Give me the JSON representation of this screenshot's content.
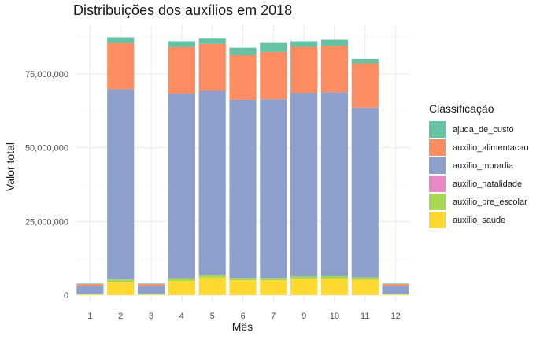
{
  "chart_data": {
    "type": "bar",
    "stacked": true,
    "title": "Distribuições dos auxílios em 2018",
    "xlabel": "Mês",
    "ylabel": "Valor total",
    "ylim": [
      0,
      92000000
    ],
    "yticks": [
      "0",
      "25,000,000",
      "50,000,000",
      "75,000,000"
    ],
    "ytick_values": [
      0,
      25000000,
      50000000,
      75000000
    ],
    "grid": true,
    "legend_title": "Classificação",
    "legend_position": "right",
    "categories": [
      "1",
      "2",
      "3",
      "4",
      "5",
      "6",
      "7",
      "9",
      "10",
      "11",
      "12"
    ],
    "series": [
      {
        "name": "auxilio_saude",
        "color": "#FFD92F",
        "values": [
          200000,
          4500000,
          200000,
          4800000,
          5900000,
          5000000,
          5000000,
          5500000,
          5600000,
          5200000,
          200000
        ]
      },
      {
        "name": "auxilio_pre_escolar",
        "color": "#A6D854",
        "values": [
          300000,
          800000,
          300000,
          900000,
          900000,
          800000,
          800000,
          800000,
          800000,
          800000,
          300000
        ]
      },
      {
        "name": "auxilio_natalidade",
        "color": "#E78AC3",
        "values": [
          0,
          0,
          0,
          0,
          0,
          0,
          0,
          0,
          0,
          0,
          0
        ]
      },
      {
        "name": "auxilio_moradia",
        "color": "#8DA0CB",
        "values": [
          2500000,
          64600000,
          2500000,
          62600000,
          62600000,
          60400000,
          60600000,
          62300000,
          62400000,
          57600000,
          2500000
        ]
      },
      {
        "name": "auxilio_alimentacao",
        "color": "#FC8D62",
        "values": [
          700000,
          15500000,
          700000,
          15800000,
          15800000,
          15200000,
          16100000,
          15600000,
          15800000,
          15000000,
          700000
        ]
      },
      {
        "name": "ajuda_de_custo",
        "color": "#66C2A5",
        "values": [
          200000,
          2000000,
          200000,
          2000000,
          2000000,
          2500000,
          3000000,
          1900000,
          2000000,
          1500000,
          200000
        ]
      }
    ],
    "legend_order": [
      "ajuda_de_custo",
      "auxilio_alimentacao",
      "auxilio_moradia",
      "auxilio_natalidade",
      "auxilio_pre_escolar",
      "auxilio_saude"
    ]
  }
}
